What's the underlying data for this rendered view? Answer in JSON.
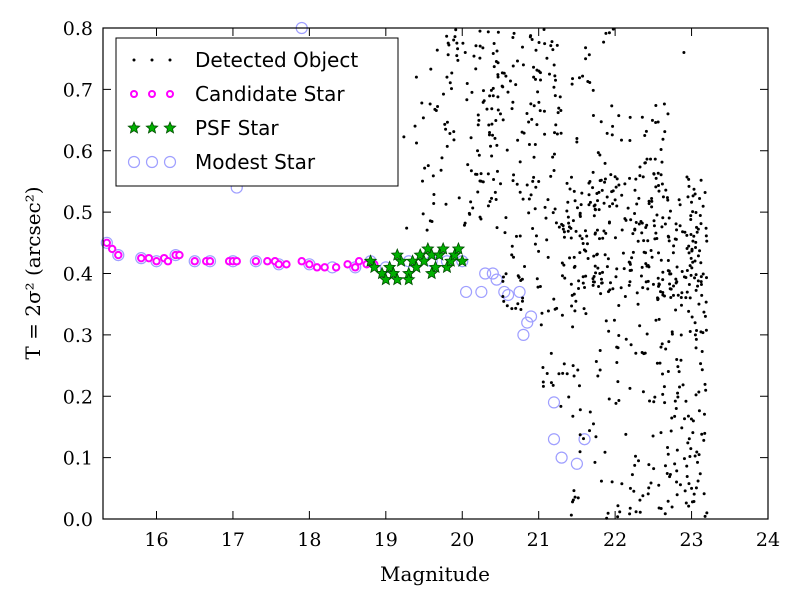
{
  "chart_data": {
    "type": "scatter",
    "xlabel": "Magnitude",
    "ylabel": "T = 2σ² (arcsec²)",
    "xlim": [
      15.3,
      24
    ],
    "ylim": [
      0.0,
      0.8
    ],
    "xticks": [
      16,
      17,
      18,
      19,
      20,
      21,
      22,
      23,
      24
    ],
    "yticks": [
      0.0,
      0.1,
      0.2,
      0.3,
      0.4,
      0.5,
      0.6,
      0.7,
      0.8
    ],
    "ytick_labels": [
      "0.0",
      "0.1",
      "0.2",
      "0.3",
      "0.4",
      "0.5",
      "0.6",
      "0.7",
      "0.8"
    ],
    "grid": false,
    "legend_position": "top-left",
    "colors": {
      "detected": "#000000",
      "candidate_edge": "#ff00ff",
      "candidate_fill": "#ffffff",
      "psf_fill": "#00b000",
      "psf_edge": "#004d00",
      "modest_edge": "#9f9fff"
    },
    "series": [
      {
        "name": "Detected Object",
        "marker": "dot",
        "generated": true,
        "description_points": "dense scatter of faint objects, magnitude ~19.2–23.2, T ~0.0–0.8",
        "sample_points": [
          [
            19.1,
            0.58
          ],
          [
            19.8,
            0.72
          ],
          [
            20.2,
            0.6
          ],
          [
            20.5,
            0.66
          ],
          [
            20.8,
            0.74
          ],
          [
            21.0,
            0.55
          ],
          [
            21.3,
            0.48
          ],
          [
            21.5,
            0.62
          ],
          [
            21.8,
            0.4
          ],
          [
            22.0,
            0.52
          ],
          [
            22.3,
            0.35
          ],
          [
            22.6,
            0.28
          ],
          [
            22.8,
            0.18
          ],
          [
            23.0,
            0.05
          ],
          [
            23.2,
            0.01
          ],
          [
            22.2,
            0.05
          ],
          [
            22.9,
            0.76
          ],
          [
            19.4,
            0.72
          ]
        ]
      },
      {
        "name": "Candidate Star",
        "marker": "circle-small",
        "points": [
          [
            15.35,
            0.45
          ],
          [
            15.42,
            0.44
          ],
          [
            15.5,
            0.43
          ],
          [
            15.8,
            0.425
          ],
          [
            15.9,
            0.425
          ],
          [
            16.0,
            0.42
          ],
          [
            16.1,
            0.425
          ],
          [
            16.15,
            0.42
          ],
          [
            16.25,
            0.43
          ],
          [
            16.3,
            0.43
          ],
          [
            16.5,
            0.42
          ],
          [
            16.65,
            0.42
          ],
          [
            16.7,
            0.42
          ],
          [
            16.95,
            0.42
          ],
          [
            17.0,
            0.42
          ],
          [
            17.05,
            0.42
          ],
          [
            17.3,
            0.42
          ],
          [
            17.45,
            0.42
          ],
          [
            17.55,
            0.42
          ],
          [
            17.6,
            0.415
          ],
          [
            17.7,
            0.415
          ],
          [
            17.9,
            0.42
          ],
          [
            18.0,
            0.415
          ],
          [
            18.1,
            0.41
          ],
          [
            18.2,
            0.41
          ],
          [
            18.35,
            0.41
          ],
          [
            18.5,
            0.415
          ],
          [
            18.6,
            0.41
          ],
          [
            18.65,
            0.42
          ],
          [
            18.75,
            0.415
          ],
          [
            18.85,
            0.415
          ]
        ]
      },
      {
        "name": "PSF Star",
        "marker": "star",
        "points": [
          [
            18.8,
            0.42
          ],
          [
            18.85,
            0.41
          ],
          [
            18.95,
            0.4
          ],
          [
            19.0,
            0.39
          ],
          [
            19.05,
            0.41
          ],
          [
            19.1,
            0.4
          ],
          [
            19.15,
            0.39
          ],
          [
            19.2,
            0.42
          ],
          [
            19.3,
            0.4
          ],
          [
            19.35,
            0.42
          ],
          [
            19.4,
            0.41
          ],
          [
            19.45,
            0.43
          ],
          [
            19.5,
            0.42
          ],
          [
            19.55,
            0.44
          ],
          [
            19.6,
            0.43
          ],
          [
            19.65,
            0.41
          ],
          [
            19.7,
            0.43
          ],
          [
            19.75,
            0.44
          ],
          [
            19.8,
            0.41
          ],
          [
            19.85,
            0.42
          ],
          [
            19.9,
            0.43
          ],
          [
            19.95,
            0.44
          ],
          [
            20.0,
            0.42
          ],
          [
            19.15,
            0.43
          ],
          [
            19.3,
            0.39
          ],
          [
            19.6,
            0.4
          ]
        ]
      },
      {
        "name": "Modest Star",
        "marker": "circle-open",
        "points": [
          [
            15.35,
            0.45
          ],
          [
            15.5,
            0.43
          ],
          [
            15.8,
            0.425
          ],
          [
            16.0,
            0.42
          ],
          [
            16.25,
            0.43
          ],
          [
            16.5,
            0.42
          ],
          [
            16.7,
            0.42
          ],
          [
            17.0,
            0.42
          ],
          [
            17.05,
            0.54
          ],
          [
            17.3,
            0.42
          ],
          [
            17.6,
            0.415
          ],
          [
            17.9,
            0.8
          ],
          [
            18.0,
            0.415
          ],
          [
            18.3,
            0.41
          ],
          [
            18.6,
            0.41
          ],
          [
            18.8,
            0.42
          ],
          [
            19.0,
            0.41
          ],
          [
            19.3,
            0.42
          ],
          [
            19.6,
            0.42
          ],
          [
            19.8,
            0.42
          ],
          [
            20.0,
            0.42
          ],
          [
            20.05,
            0.37
          ],
          [
            20.25,
            0.37
          ],
          [
            20.3,
            0.4
          ],
          [
            20.4,
            0.4
          ],
          [
            20.45,
            0.39
          ],
          [
            20.55,
            0.37
          ],
          [
            20.6,
            0.365
          ],
          [
            20.75,
            0.37
          ],
          [
            20.8,
            0.3
          ],
          [
            20.85,
            0.32
          ],
          [
            20.9,
            0.33
          ],
          [
            21.2,
            0.19
          ],
          [
            21.2,
            0.13
          ],
          [
            21.3,
            0.1
          ],
          [
            21.5,
            0.09
          ],
          [
            21.6,
            0.13
          ]
        ]
      }
    ]
  }
}
